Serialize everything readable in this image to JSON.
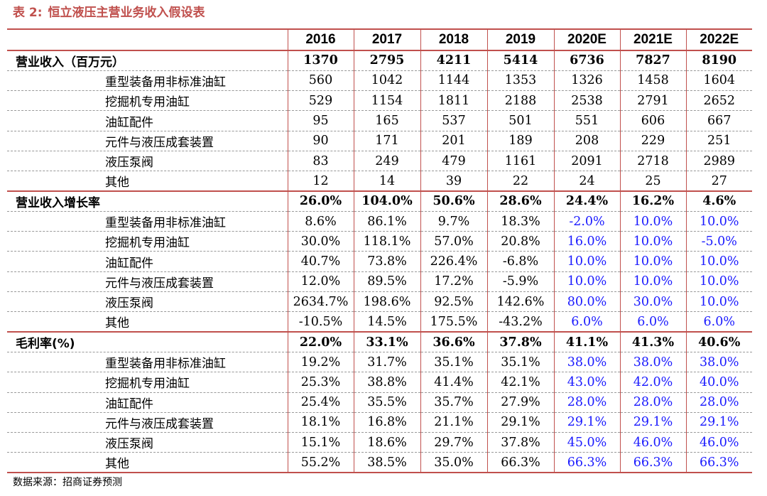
{
  "title": {
    "label": "表 2:",
    "text": "恒立液压主营业务收入假设表"
  },
  "table": {
    "columns": [
      "2016",
      "2017",
      "2018",
      "2019",
      "2020E",
      "2021E",
      "2022E"
    ],
    "rows": [
      {
        "label": "营业收入（百万元）",
        "type": "section",
        "values": [
          "1370",
          "2795",
          "4211",
          "5414",
          "6736",
          "7827",
          "8190"
        ],
        "blue_from": 7
      },
      {
        "label": "重型装备用非标准油缸",
        "type": "sub",
        "values": [
          "560",
          "1042",
          "1144",
          "1353",
          "1326",
          "1458",
          "1604"
        ],
        "blue_from": 7
      },
      {
        "label": "挖掘机专用油缸",
        "type": "sub",
        "values": [
          "529",
          "1154",
          "1811",
          "2188",
          "2538",
          "2791",
          "2652"
        ],
        "blue_from": 7
      },
      {
        "label": "油缸配件",
        "type": "sub",
        "values": [
          "95",
          "165",
          "537",
          "501",
          "551",
          "606",
          "667"
        ],
        "blue_from": 7
      },
      {
        "label": "元件与液压成套装置",
        "type": "sub",
        "values": [
          "90",
          "171",
          "201",
          "189",
          "208",
          "229",
          "251"
        ],
        "blue_from": 7
      },
      {
        "label": "液压泵阀",
        "type": "sub",
        "values": [
          "83",
          "249",
          "479",
          "1161",
          "2091",
          "2718",
          "2989"
        ],
        "blue_from": 7
      },
      {
        "label": "其他",
        "type": "sub",
        "values": [
          "12",
          "14",
          "39",
          "22",
          "24",
          "25",
          "27"
        ],
        "blue_from": 7
      },
      {
        "label": "营业收入增长率",
        "type": "section",
        "values": [
          "26.0%",
          "104.0%",
          "50.6%",
          "28.6%",
          "24.4%",
          "16.2%",
          "4.6%"
        ],
        "blue_from": 7
      },
      {
        "label": "重型装备用非标准油缸",
        "type": "sub",
        "values": [
          "8.6%",
          "86.1%",
          "9.7%",
          "18.3%",
          "-2.0%",
          "10.0%",
          "10.0%"
        ],
        "blue_from": 4
      },
      {
        "label": "挖掘机专用油缸",
        "type": "sub",
        "values": [
          "30.0%",
          "118.1%",
          "57.0%",
          "20.8%",
          "16.0%",
          "10.0%",
          "-5.0%"
        ],
        "blue_from": 4
      },
      {
        "label": "油缸配件",
        "type": "sub",
        "values": [
          "40.7%",
          "73.8%",
          "226.4%",
          "-6.8%",
          "10.0%",
          "10.0%",
          "10.0%"
        ],
        "blue_from": 4
      },
      {
        "label": "元件与液压成套装置",
        "type": "sub",
        "values": [
          "12.0%",
          "89.5%",
          "17.2%",
          "-5.9%",
          "10.0%",
          "10.0%",
          "10.0%"
        ],
        "blue_from": 4
      },
      {
        "label": "液压泵阀",
        "type": "sub",
        "values": [
          "2634.7%",
          "198.6%",
          "92.5%",
          "142.6%",
          "80.0%",
          "30.0%",
          "10.0%"
        ],
        "blue_from": 4
      },
      {
        "label": "其他",
        "type": "sub",
        "values": [
          "-10.5%",
          "14.5%",
          "175.5%",
          "-43.2%",
          "6.0%",
          "6.0%",
          "6.0%"
        ],
        "blue_from": 4
      },
      {
        "label": "毛利率(%)",
        "type": "section",
        "values": [
          "22.0%",
          "33.1%",
          "36.6%",
          "37.8%",
          "41.1%",
          "41.3%",
          "40.6%"
        ],
        "blue_from": 7
      },
      {
        "label": "重型装备用非标准油缸",
        "type": "sub",
        "values": [
          "19.2%",
          "31.7%",
          "35.1%",
          "35.1%",
          "38.0%",
          "38.0%",
          "38.0%"
        ],
        "blue_from": 4
      },
      {
        "label": "挖掘机专用油缸",
        "type": "sub",
        "values": [
          "25.3%",
          "38.8%",
          "41.4%",
          "42.1%",
          "43.0%",
          "42.0%",
          "40.0%"
        ],
        "blue_from": 4
      },
      {
        "label": "油缸配件",
        "type": "sub",
        "values": [
          "25.4%",
          "35.5%",
          "35.7%",
          "27.9%",
          "28.0%",
          "28.0%",
          "28.0%"
        ],
        "blue_from": 4
      },
      {
        "label": "元件与液压成套装置",
        "type": "sub",
        "values": [
          "18.1%",
          "16.8%",
          "21.1%",
          "29.1%",
          "29.1%",
          "29.1%",
          "29.1%"
        ],
        "blue_from": 4
      },
      {
        "label": "液压泵阀",
        "type": "sub",
        "values": [
          "15.1%",
          "18.6%",
          "29.7%",
          "37.8%",
          "45.0%",
          "46.0%",
          "46.0%"
        ],
        "blue_from": 4
      },
      {
        "label": "其他",
        "type": "sub",
        "values": [
          "55.2%",
          "38.5%",
          "35.0%",
          "66.3%",
          "66.3%",
          "66.3%",
          "66.3%"
        ],
        "blue_from": 4
      }
    ]
  },
  "source": "数据来源：招商证券预测",
  "colors": {
    "accent": "#c0504d",
    "forecast_blue": "#1a1aff"
  }
}
